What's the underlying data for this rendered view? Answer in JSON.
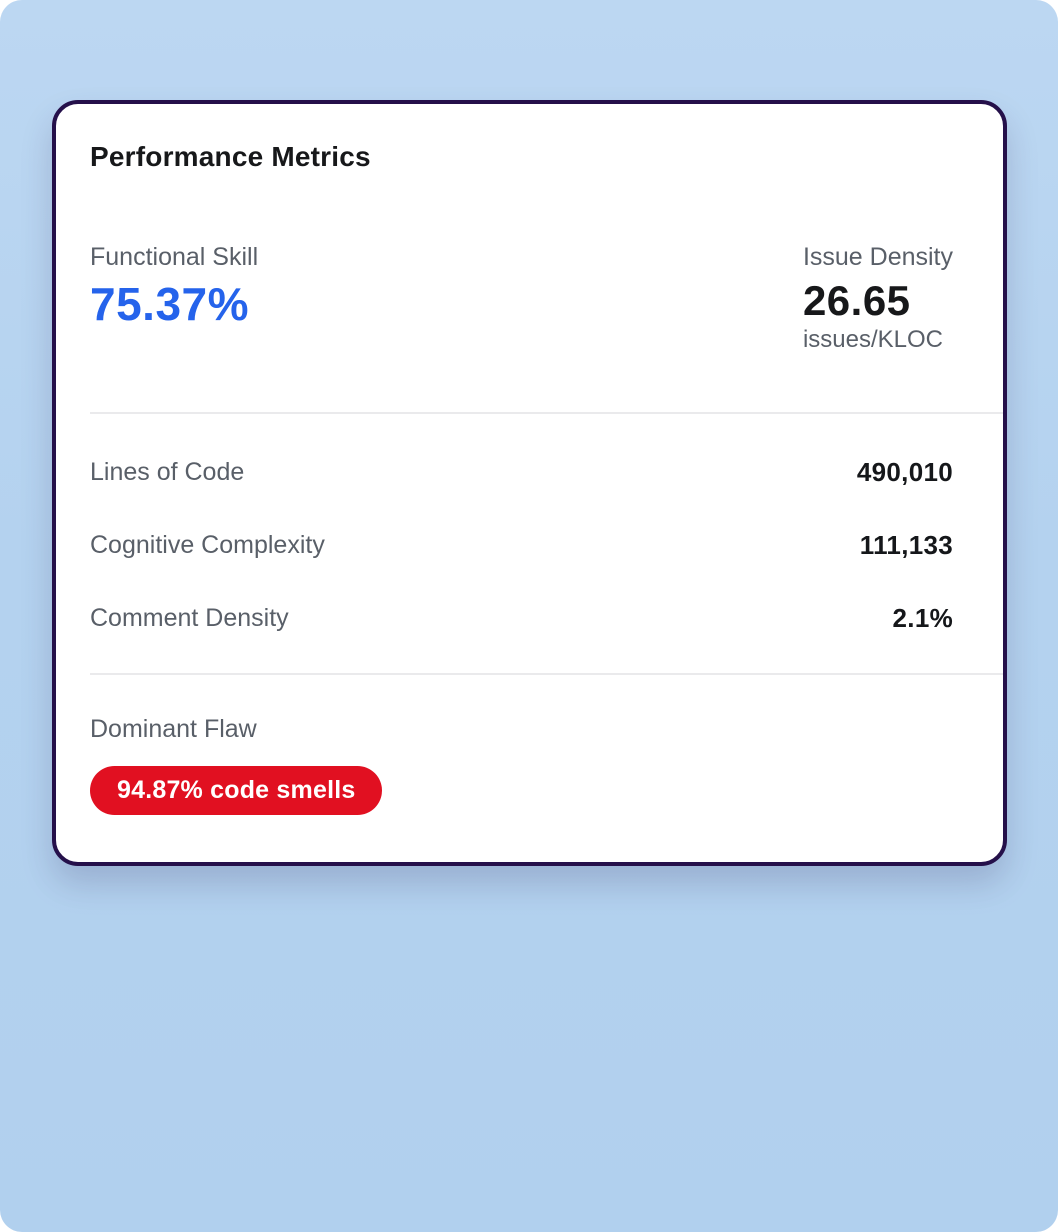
{
  "page": {
    "background_color": "#b4d2ef"
  },
  "card": {
    "title": "Performance Metrics",
    "border_color": "#25104a",
    "primary_stat": {
      "label": "Functional Skill",
      "value": "75.37%",
      "value_color": "#2563eb"
    },
    "secondary_stat": {
      "label": "Issue Density",
      "value": "26.65",
      "unit": "issues/KLOC"
    },
    "metrics": [
      {
        "label": "Lines of Code",
        "value": "490,010"
      },
      {
        "label": "Cognitive Complexity",
        "value": "111,133"
      },
      {
        "label": "Comment Density",
        "value": "2.1%"
      }
    ],
    "dominant_flaw": {
      "label": "Dominant Flaw",
      "badge_text": "94.87% code smells",
      "badge_color": "#e11021"
    }
  }
}
